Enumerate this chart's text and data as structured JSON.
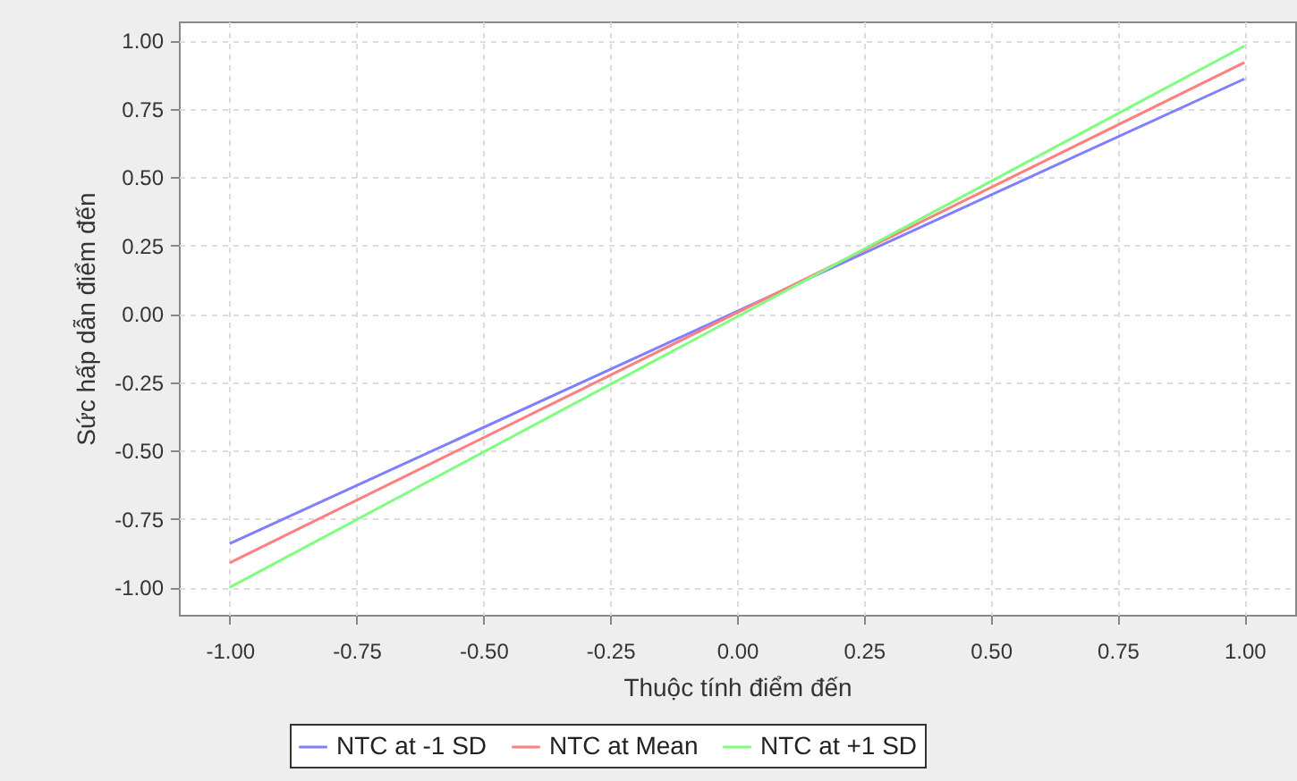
{
  "chart_data": {
    "type": "line",
    "xlabel": "Thuộc tính điểm đến",
    "ylabel": "Sức hấp dẫn điểm đến",
    "x": [
      -1,
      1
    ],
    "series": [
      {
        "name": "NTC at -1 SD",
        "color": "#7f7fff",
        "values": [
          -0.84,
          0.86
        ]
      },
      {
        "name": "NTC at Mean",
        "color": "#ff7f7f",
        "values": [
          -0.91,
          0.92
        ]
      },
      {
        "name": "NTC at +1 SD",
        "color": "#7fff7f",
        "values": [
          -1.0,
          0.98
        ]
      }
    ],
    "xlim": [
      -1.1,
      1.1
    ],
    "xticks": [
      {
        "value": -1,
        "label": "-1.00"
      },
      {
        "value": -0.75,
        "label": "-0.75"
      },
      {
        "value": -0.5,
        "label": "-0.50"
      },
      {
        "value": -0.25,
        "label": "-0.25"
      },
      {
        "value": 0,
        "label": "0.00"
      },
      {
        "value": 0.25,
        "label": "0.25"
      },
      {
        "value": 0.5,
        "label": "0.50"
      },
      {
        "value": 0.75,
        "label": "0.75"
      },
      {
        "value": 1,
        "label": "1.00"
      }
    ],
    "ylim": [
      -1.1,
      1.07
    ],
    "yticks": [
      {
        "value": -1,
        "label": "-1.00"
      },
      {
        "value": -0.75,
        "label": "-0.75"
      },
      {
        "value": -0.5,
        "label": "-0.50"
      },
      {
        "value": -0.25,
        "label": "-0.25"
      },
      {
        "value": 0,
        "label": "0.00"
      },
      {
        "value": 0.25,
        "label": "0.25"
      },
      {
        "value": 0.5,
        "label": "0.50"
      },
      {
        "value": 0.75,
        "label": "0.75"
      },
      {
        "value": 1,
        "label": "1.00"
      }
    ],
    "grid": true,
    "legend": "bottom",
    "marker": "none",
    "line_style": "solid"
  }
}
